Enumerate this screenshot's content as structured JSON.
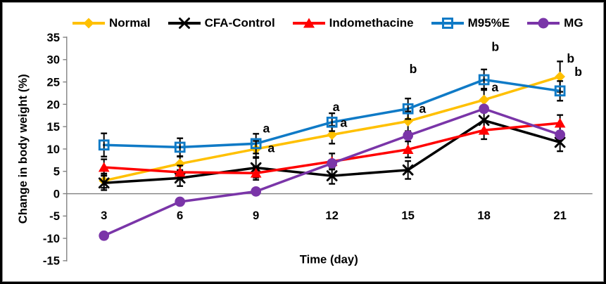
{
  "chart_data": {
    "type": "line",
    "title": "",
    "xlabel": "Time (day)",
    "ylabel": "Change in body weight (%)",
    "x": [
      3,
      6,
      9,
      12,
      15,
      18,
      21
    ],
    "x_tick_labels": [
      "3",
      "6",
      "9",
      "12",
      "15",
      "18",
      "21"
    ],
    "ylim": [
      -15,
      35
    ],
    "ytick_step": 5,
    "y_tick_labels": [
      "35",
      "30",
      "25",
      "20",
      "15",
      "10",
      "5",
      "0",
      "-5",
      "-10",
      "-15"
    ],
    "grid": false,
    "legend_position": "top",
    "axis_color": "#808080",
    "error_bar_color": "#000000",
    "series": [
      {
        "name": "Normal",
        "color": "#FFC000",
        "marker": "diamond",
        "values": [
          2.9,
          6.7,
          10.0,
          13.2,
          16.2,
          21.0,
          26.2
        ],
        "errors": [
          1.6,
          1.6,
          1.8,
          2.0,
          2.2,
          2.5,
          3.4
        ]
      },
      {
        "name": "CFA-Control",
        "color": "#000000",
        "marker": "x",
        "values": [
          2.4,
          3.5,
          5.8,
          4.0,
          5.3,
          16.4,
          11.5
        ],
        "errors": [
          1.6,
          1.8,
          2.2,
          1.8,
          2.0,
          2.3,
          2.0
        ]
      },
      {
        "name": "Indomethacine",
        "color": "#FF0000",
        "marker": "triangle",
        "values": [
          5.9,
          4.8,
          4.6,
          7.2,
          9.9,
          14.2,
          15.8
        ],
        "errors": [
          1.8,
          1.5,
          1.5,
          1.8,
          1.8,
          2.0,
          1.8
        ]
      },
      {
        "name": "M95%E",
        "color": "#0F7AC6",
        "marker": "square-open",
        "values": [
          10.9,
          10.4,
          11.2,
          16.0,
          19.0,
          25.5,
          23.0
        ],
        "errors": [
          2.6,
          2.0,
          2.2,
          2.0,
          2.3,
          2.3,
          2.2
        ]
      },
      {
        "name": "MG",
        "color": "#7A35A8",
        "marker": "circle",
        "values": [
          -9.4,
          -1.8,
          0.5,
          6.8,
          13.0,
          19.0,
          13.2
        ],
        "errors": [
          0,
          0,
          0,
          0,
          0,
          0,
          0
        ]
      }
    ],
    "annotations": [
      {
        "day": 9,
        "value": 14.6,
        "dx": 10,
        "text": "a"
      },
      {
        "day": 9,
        "value": 10.2,
        "dx": 17,
        "text": "a"
      },
      {
        "day": 12,
        "value": 19.4,
        "dx": 1,
        "text": "a"
      },
      {
        "day": 12,
        "value": 15.9,
        "dx": 12,
        "text": "a"
      },
      {
        "day": 15,
        "value": 27.9,
        "dx": 2,
        "text": "b"
      },
      {
        "day": 15,
        "value": 19.0,
        "dx": 16,
        "text": "a"
      },
      {
        "day": 18,
        "value": 32.9,
        "dx": 11,
        "text": "b"
      },
      {
        "day": 18,
        "value": 23.8,
        "dx": 11,
        "text": "a"
      },
      {
        "day": 21,
        "value": 30.3,
        "dx": 10,
        "text": "b"
      },
      {
        "day": 21,
        "value": 27.3,
        "dx": 21,
        "text": "b"
      }
    ]
  }
}
